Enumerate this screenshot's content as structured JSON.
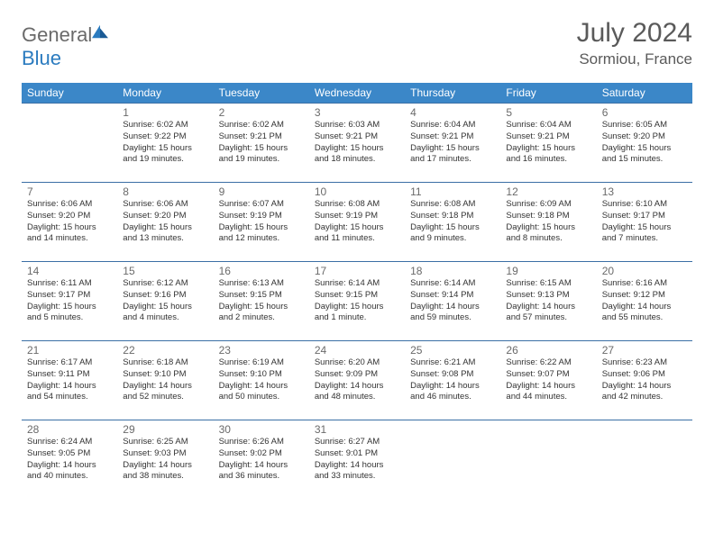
{
  "logo": {
    "part1": "General",
    "part2": "Blue"
  },
  "title": "July 2024",
  "location": "Sormiou, France",
  "day_headers": [
    "Sunday",
    "Monday",
    "Tuesday",
    "Wednesday",
    "Thursday",
    "Friday",
    "Saturday"
  ],
  "colors": {
    "header_bg": "#3b87c8",
    "header_text": "#ffffff",
    "border": "#3b6fa5",
    "logo_gray": "#6a6a6a",
    "logo_blue": "#2b7bbf",
    "title_color": "#5a5a5a",
    "day_num_color": "#6a6a6a",
    "info_color": "#333333",
    "background": "#ffffff"
  },
  "weeks": [
    [
      null,
      {
        "n": "1",
        "sr": "6:02 AM",
        "ss": "9:22 PM",
        "dl": "15 hours and 19 minutes."
      },
      {
        "n": "2",
        "sr": "6:02 AM",
        "ss": "9:21 PM",
        "dl": "15 hours and 19 minutes."
      },
      {
        "n": "3",
        "sr": "6:03 AM",
        "ss": "9:21 PM",
        "dl": "15 hours and 18 minutes."
      },
      {
        "n": "4",
        "sr": "6:04 AM",
        "ss": "9:21 PM",
        "dl": "15 hours and 17 minutes."
      },
      {
        "n": "5",
        "sr": "6:04 AM",
        "ss": "9:21 PM",
        "dl": "15 hours and 16 minutes."
      },
      {
        "n": "6",
        "sr": "6:05 AM",
        "ss": "9:20 PM",
        "dl": "15 hours and 15 minutes."
      }
    ],
    [
      {
        "n": "7",
        "sr": "6:06 AM",
        "ss": "9:20 PM",
        "dl": "15 hours and 14 minutes."
      },
      {
        "n": "8",
        "sr": "6:06 AM",
        "ss": "9:20 PM",
        "dl": "15 hours and 13 minutes."
      },
      {
        "n": "9",
        "sr": "6:07 AM",
        "ss": "9:19 PM",
        "dl": "15 hours and 12 minutes."
      },
      {
        "n": "10",
        "sr": "6:08 AM",
        "ss": "9:19 PM",
        "dl": "15 hours and 11 minutes."
      },
      {
        "n": "11",
        "sr": "6:08 AM",
        "ss": "9:18 PM",
        "dl": "15 hours and 9 minutes."
      },
      {
        "n": "12",
        "sr": "6:09 AM",
        "ss": "9:18 PM",
        "dl": "15 hours and 8 minutes."
      },
      {
        "n": "13",
        "sr": "6:10 AM",
        "ss": "9:17 PM",
        "dl": "15 hours and 7 minutes."
      }
    ],
    [
      {
        "n": "14",
        "sr": "6:11 AM",
        "ss": "9:17 PM",
        "dl": "15 hours and 5 minutes."
      },
      {
        "n": "15",
        "sr": "6:12 AM",
        "ss": "9:16 PM",
        "dl": "15 hours and 4 minutes."
      },
      {
        "n": "16",
        "sr": "6:13 AM",
        "ss": "9:15 PM",
        "dl": "15 hours and 2 minutes."
      },
      {
        "n": "17",
        "sr": "6:14 AM",
        "ss": "9:15 PM",
        "dl": "15 hours and 1 minute."
      },
      {
        "n": "18",
        "sr": "6:14 AM",
        "ss": "9:14 PM",
        "dl": "14 hours and 59 minutes."
      },
      {
        "n": "19",
        "sr": "6:15 AM",
        "ss": "9:13 PM",
        "dl": "14 hours and 57 minutes."
      },
      {
        "n": "20",
        "sr": "6:16 AM",
        "ss": "9:12 PM",
        "dl": "14 hours and 55 minutes."
      }
    ],
    [
      {
        "n": "21",
        "sr": "6:17 AM",
        "ss": "9:11 PM",
        "dl": "14 hours and 54 minutes."
      },
      {
        "n": "22",
        "sr": "6:18 AM",
        "ss": "9:10 PM",
        "dl": "14 hours and 52 minutes."
      },
      {
        "n": "23",
        "sr": "6:19 AM",
        "ss": "9:10 PM",
        "dl": "14 hours and 50 minutes."
      },
      {
        "n": "24",
        "sr": "6:20 AM",
        "ss": "9:09 PM",
        "dl": "14 hours and 48 minutes."
      },
      {
        "n": "25",
        "sr": "6:21 AM",
        "ss": "9:08 PM",
        "dl": "14 hours and 46 minutes."
      },
      {
        "n": "26",
        "sr": "6:22 AM",
        "ss": "9:07 PM",
        "dl": "14 hours and 44 minutes."
      },
      {
        "n": "27",
        "sr": "6:23 AM",
        "ss": "9:06 PM",
        "dl": "14 hours and 42 minutes."
      }
    ],
    [
      {
        "n": "28",
        "sr": "6:24 AM",
        "ss": "9:05 PM",
        "dl": "14 hours and 40 minutes."
      },
      {
        "n": "29",
        "sr": "6:25 AM",
        "ss": "9:03 PM",
        "dl": "14 hours and 38 minutes."
      },
      {
        "n": "30",
        "sr": "6:26 AM",
        "ss": "9:02 PM",
        "dl": "14 hours and 36 minutes."
      },
      {
        "n": "31",
        "sr": "6:27 AM",
        "ss": "9:01 PM",
        "dl": "14 hours and 33 minutes."
      },
      null,
      null,
      null
    ]
  ],
  "labels": {
    "sunrise": "Sunrise: ",
    "sunset": "Sunset: ",
    "daylight": "Daylight: "
  }
}
